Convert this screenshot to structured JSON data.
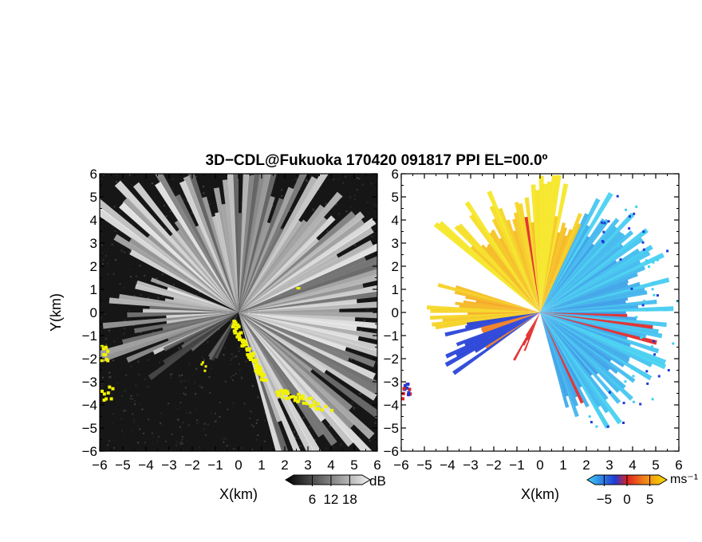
{
  "title": "3D−CDL@Fukuoka 170420 091817 PPI EL=00.0º",
  "colors": {
    "ref_background": "#161616",
    "sector_gray": "#b8b8b8",
    "highlight_yellow": "#f2f200",
    "vel_blue": "#1f3bd6",
    "vel_cyan": "#3fd0f2",
    "vel_orange": "#f07a1a",
    "vel_yellow": "#f7c800",
    "vel_red": "#e02020"
  },
  "chart_data": [
    {
      "type": "heatmap",
      "name": "reflectivity-ppi",
      "xlabel": "X(km)",
      "ylabel": "Y(km)",
      "xlim": [
        -6,
        6
      ],
      "ylim": [
        -6,
        6
      ],
      "x_ticks": [
        "−6",
        "−5",
        "−4",
        "−3",
        "−2",
        "−1",
        "0",
        "1",
        "2",
        "3",
        "4",
        "5",
        "6"
      ],
      "y_ticks": [
        "6",
        "5",
        "4",
        "3",
        "2",
        "1",
        "0",
        "−1",
        "−2",
        "−3",
        "−4",
        "−5",
        "−6"
      ],
      "colorbar": {
        "unit": "dB",
        "tick_labels": [
          "6",
          "12",
          "18"
        ],
        "ticks": [
          6,
          12,
          18
        ],
        "range": [
          0,
          22
        ]
      }
    },
    {
      "type": "heatmap",
      "name": "doppler-velocity-ppi",
      "xlabel": "X(km)",
      "xlim": [
        -6,
        6
      ],
      "ylim": [
        -6,
        6
      ],
      "x_ticks": [
        "−6",
        "−5",
        "−4",
        "−3",
        "−2",
        "−1",
        "0",
        "1",
        "2",
        "3",
        "4",
        "5",
        "6"
      ],
      "y_ticks": [
        "6",
        "5",
        "4",
        "3",
        "2",
        "1",
        "0",
        "−1",
        "−2",
        "−3",
        "−4",
        "−5",
        "−6"
      ],
      "colorbar": {
        "unit": "ms⁻¹",
        "tick_labels": [
          "−5",
          "0",
          "5"
        ],
        "ticks": [
          -5,
          0,
          5
        ],
        "range": [
          -7,
          7
        ]
      }
    }
  ]
}
